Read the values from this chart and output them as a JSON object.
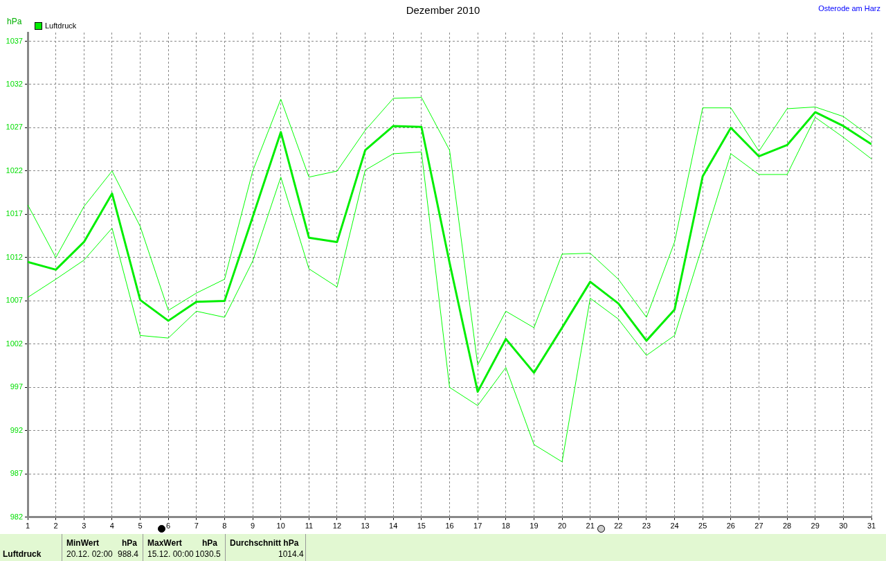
{
  "chart_data": {
    "type": "line",
    "title": "Dezember 2010",
    "ylabel": "hPa",
    "annotations": [
      "Osterode am Harz",
      "Luftdruck",
      "MinWert",
      "hPa",
      "20.12.  02:00",
      "988.4",
      "MaxWert",
      "hPa",
      "15.12.  00:00",
      "1030.5",
      "Durchschnitt   hPa",
      "1014.4"
    ],
    "x": [
      1,
      2,
      3,
      4,
      5,
      6,
      7,
      8,
      9,
      10,
      11,
      12,
      13,
      14,
      15,
      16,
      17,
      18,
      19,
      20,
      21,
      22,
      23,
      24,
      25,
      26,
      27,
      28,
      29,
      30,
      31
    ],
    "series": [
      {
        "color": "#00ff00",
        "values": [
          1018.1,
          1012.0,
          1017.9,
          1022.0,
          1015.6,
          1005.9,
          1007.9,
          1009.5,
          1022.0,
          1030.3,
          1021.3,
          1022.0,
          1026.7,
          1030.4,
          1030.5,
          1024.4,
          999.6,
          1005.8,
          1003.9,
          1012.4,
          1012.5,
          1009.5,
          1005.1,
          1013.8,
          1029.3,
          1029.3,
          1024.3,
          1029.2,
          1029.4,
          1028.3,
          1025.9
        ]
      },
      {
        "name": "Luftdruck",
        "color": "#00ee00",
        "values": [
          1011.5,
          1010.6,
          1013.8,
          1019.4,
          1007.1,
          1004.7,
          1006.9,
          1007.0,
          1016.7,
          1026.5,
          1014.3,
          1013.8,
          1024.4,
          1027.2,
          1027.1,
          1011.4,
          996.5,
          1002.6,
          998.7,
          1003.9,
          1009.2,
          1006.7,
          1002.4,
          1006.0,
          1021.4,
          1027.0,
          1023.7,
          1025.0,
          1028.8,
          1027.2,
          1025.1
        ]
      },
      {
        "color": "#00ff00",
        "values": [
          1007.4,
          1009.5,
          1011.7,
          1015.4,
          1003.0,
          1002.7,
          1005.8,
          1005.1,
          1011.6,
          1021.3,
          1010.7,
          1008.6,
          1022.1,
          1024.0,
          1024.2,
          997.0,
          994.9,
          999.3,
          990.4,
          988.4,
          1007.3,
          1004.9,
          1000.7,
          1003.0,
          1013.5,
          1024.0,
          1021.6,
          1021.6,
          1028.2,
          1025.9,
          1023.4
        ]
      }
    ],
    "xlim": [
      1,
      31
    ],
    "xticks": [
      1,
      2,
      3,
      4,
      5,
      6,
      7,
      8,
      9,
      10,
      11,
      12,
      13,
      14,
      15,
      16,
      17,
      18,
      19,
      20,
      21,
      22,
      23,
      24,
      25,
      26,
      27,
      28,
      29,
      30,
      31
    ],
    "ylim": [
      982,
      1038
    ],
    "yticks": [
      982,
      987,
      992,
      997,
      1002,
      1007,
      1012,
      1017,
      1022,
      1027,
      1032,
      1037
    ],
    "grid": true,
    "legend": "top left",
    "marker": "none",
    "line_style": "solid"
  }
}
